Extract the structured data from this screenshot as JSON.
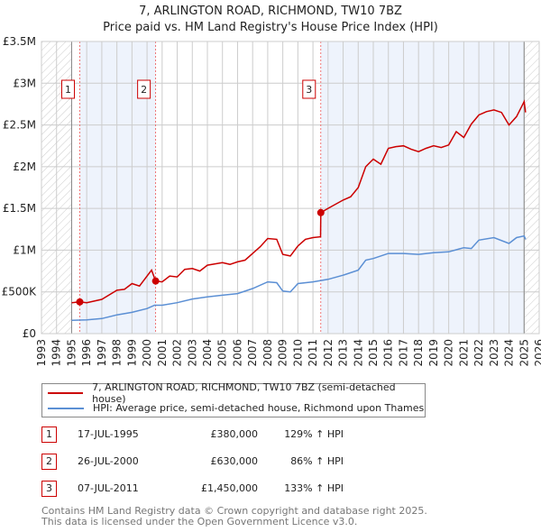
{
  "chart_data": {
    "type": "line",
    "title": "7, ARLINGTON ROAD, RICHMOND, TW10 7BZ",
    "subtitle": "Price paid vs. HM Land Registry's House Price Index (HPI)",
    "xlim": [
      1993,
      2026
    ],
    "ylim": [
      0,
      3500000
    ],
    "x_ticks": [
      1993,
      1994,
      1995,
      1996,
      1997,
      1998,
      1999,
      2000,
      2001,
      2002,
      2003,
      2004,
      2005,
      2006,
      2007,
      2008,
      2009,
      2010,
      2011,
      2012,
      2013,
      2014,
      2015,
      2016,
      2017,
      2018,
      2019,
      2020,
      2021,
      2022,
      2023,
      2024,
      2025,
      2026
    ],
    "y_ticks": [
      {
        "v": 0,
        "label": "£0"
      },
      {
        "v": 500000,
        "label": "£500K"
      },
      {
        "v": 1000000,
        "label": "£1M"
      },
      {
        "v": 1500000,
        "label": "£1.5M"
      },
      {
        "v": 2000000,
        "label": "£2M"
      },
      {
        "v": 2500000,
        "label": "£2.5M"
      },
      {
        "v": 3000000,
        "label": "£3M"
      },
      {
        "v": 3500000,
        "label": "£3.5M"
      }
    ],
    "grid": true,
    "series": [
      {
        "name": "7, ARLINGTON ROAD, RICHMOND, TW10 7BZ (semi-detached house)",
        "color": "#cc0000",
        "x": [
          1995,
          1995.54,
          1996,
          1997,
          1998,
          1998.5,
          1999,
          1999.5,
          2000.3,
          2000.57,
          2001,
          2001.5,
          2002,
          2002.5,
          2003,
          2003.5,
          2004,
          2005,
          2005.5,
          2006,
          2006.5,
          2007,
          2007.5,
          2008,
          2008.6,
          2009,
          2009.5,
          2010,
          2010.5,
          2011,
          2011.5,
          2011.52,
          2012,
          2013,
          2013.5,
          2014,
          2014.5,
          2015,
          2015.5,
          2016,
          2016.5,
          2017,
          2017.5,
          2018,
          2018.5,
          2019,
          2019.5,
          2020,
          2020.5,
          2021,
          2021.5,
          2022,
          2022.5,
          2023,
          2023.5,
          2024,
          2024.5,
          2025,
          2025.1
        ],
        "y": [
          370000,
          380000,
          370000,
          410000,
          520000,
          530000,
          600000,
          570000,
          760000,
          630000,
          620000,
          690000,
          680000,
          770000,
          780000,
          750000,
          820000,
          850000,
          830000,
          860000,
          880000,
          960000,
          1040000,
          1140000,
          1130000,
          950000,
          930000,
          1050000,
          1130000,
          1150000,
          1160000,
          1450000,
          1500000,
          1600000,
          1640000,
          1750000,
          2000000,
          2090000,
          2030000,
          2220000,
          2240000,
          2250000,
          2210000,
          2180000,
          2220000,
          2250000,
          2230000,
          2260000,
          2420000,
          2350000,
          2510000,
          2620000,
          2660000,
          2680000,
          2650000,
          2500000,
          2600000,
          2780000,
          2650000
        ]
      },
      {
        "name": "HPI: Average price, semi-detached house, Richmond upon Thames",
        "color": "#5b8fd4",
        "x": [
          1995,
          1996,
          1997,
          1998,
          1999,
          2000,
          2000.5,
          2001,
          2002,
          2003,
          2004,
          2005,
          2006,
          2007,
          2008,
          2008.6,
          2009,
          2009.5,
          2010,
          2011,
          2012,
          2013,
          2014,
          2014.5,
          2015,
          2016,
          2017,
          2018,
          2019,
          2020,
          2021,
          2021.5,
          2022,
          2023,
          2024,
          2024.5,
          2025,
          2025.1
        ],
        "y": [
          160000,
          165000,
          180000,
          225000,
          255000,
          300000,
          340000,
          340000,
          370000,
          415000,
          440000,
          460000,
          480000,
          540000,
          620000,
          610000,
          510000,
          500000,
          600000,
          620000,
          650000,
          700000,
          760000,
          880000,
          900000,
          960000,
          960000,
          950000,
          970000,
          980000,
          1030000,
          1020000,
          1120000,
          1150000,
          1080000,
          1150000,
          1170000,
          1130000
        ]
      }
    ],
    "sales": [
      {
        "n": "1",
        "x": 1995.54,
        "y": 380000,
        "date": "17-JUL-1995",
        "price": "£380,000",
        "hpi": "129% ↑ HPI"
      },
      {
        "n": "2",
        "x": 2000.57,
        "y": 630000,
        "date": "26-JUL-2000",
        "price": "£630,000",
        "hpi": "86% ↑ HPI"
      },
      {
        "n": "3",
        "x": 2011.52,
        "y": 1450000,
        "date": "07-JUL-2011",
        "price": "£1,450,000",
        "hpi": "133% ↑ HPI"
      }
    ],
    "shaded_ranges": [
      [
        1995.54,
        2000.57
      ],
      [
        2011.52,
        2025
      ]
    ],
    "hatched_ranges": [
      [
        1993,
        1995
      ],
      [
        2025,
        2026
      ]
    ]
  },
  "legend": {
    "red": "7, ARLINGTON ROAD, RICHMOND, TW10 7BZ (semi-detached house)",
    "blue": "HPI: Average price, semi-detached house, Richmond upon Thames"
  },
  "footer": {
    "line1": "Contains HM Land Registry data © Crown copyright and database right 2025.",
    "line2": "This data is licensed under the Open Government Licence v3.0."
  }
}
